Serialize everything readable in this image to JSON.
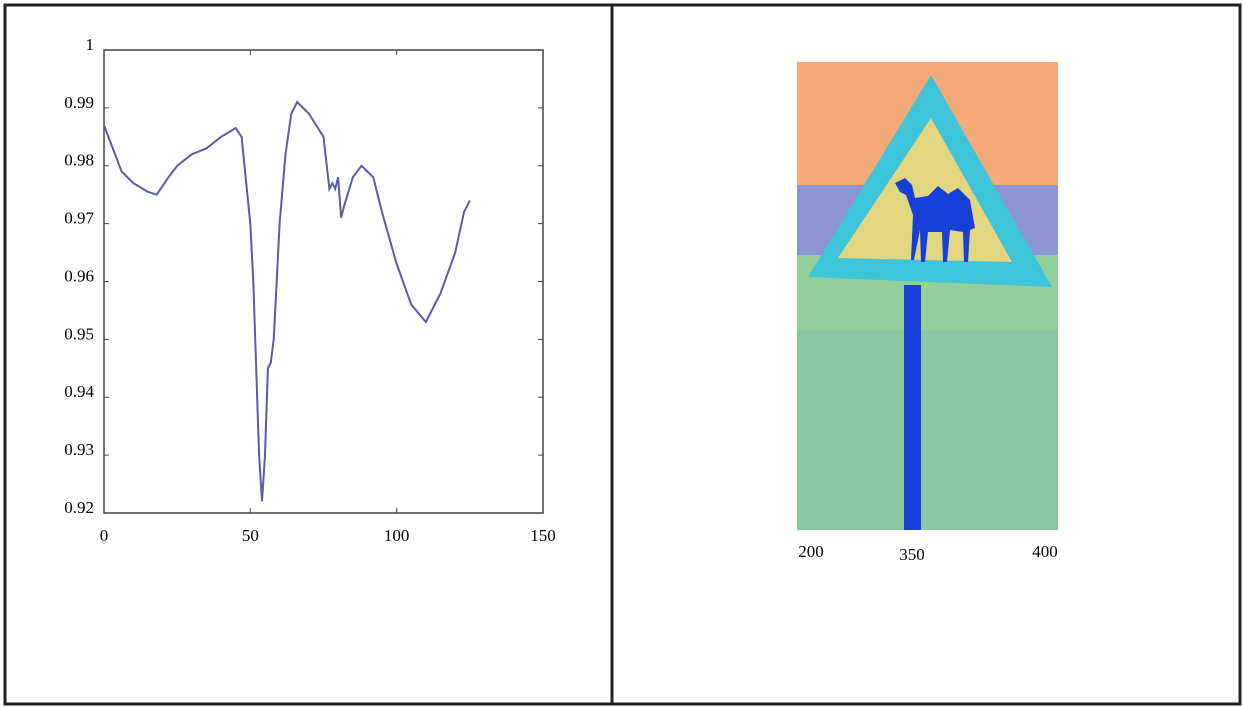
{
  "chart_data": [
    {
      "type": "line",
      "x": [
        0,
        3,
        6,
        10,
        15,
        18,
        22,
        25,
        30,
        35,
        40,
        45,
        47,
        49,
        50,
        51,
        52,
        53,
        54,
        55,
        56,
        57,
        58,
        59,
        60,
        62,
        64,
        66,
        70,
        75,
        77,
        78,
        79,
        80,
        81,
        82,
        85,
        88,
        92,
        95,
        100,
        105,
        110,
        115,
        120,
        123,
        125
      ],
      "series": [
        {
          "color": "#5b5ca8",
          "values": [
            0.987,
            0.983,
            0.979,
            0.977,
            0.9755,
            0.975,
            0.978,
            0.98,
            0.982,
            0.983,
            0.985,
            0.9865,
            0.985,
            0.975,
            0.97,
            0.96,
            0.945,
            0.93,
            0.922,
            0.93,
            0.945,
            0.946,
            0.95,
            0.96,
            0.97,
            0.982,
            0.989,
            0.991,
            0.989,
            0.985,
            0.976,
            0.977,
            0.976,
            0.978,
            0.971,
            0.973,
            0.978,
            0.98,
            0.978,
            0.972,
            0.963,
            0.956,
            0.953,
            0.958,
            0.965,
            0.972,
            0.974
          ]
        }
      ],
      "xlim": [
        0,
        150
      ],
      "xticks": [
        0,
        50,
        100,
        150
      ],
      "ylim": [
        0.92,
        1
      ],
      "yticks": [
        0.92,
        0.93,
        0.94,
        0.95,
        0.96,
        0.97,
        0.98,
        0.99,
        1
      ]
    },
    {
      "type": "image",
      "categories": [
        "200",
        "350",
        "400"
      ]
    }
  ]
}
